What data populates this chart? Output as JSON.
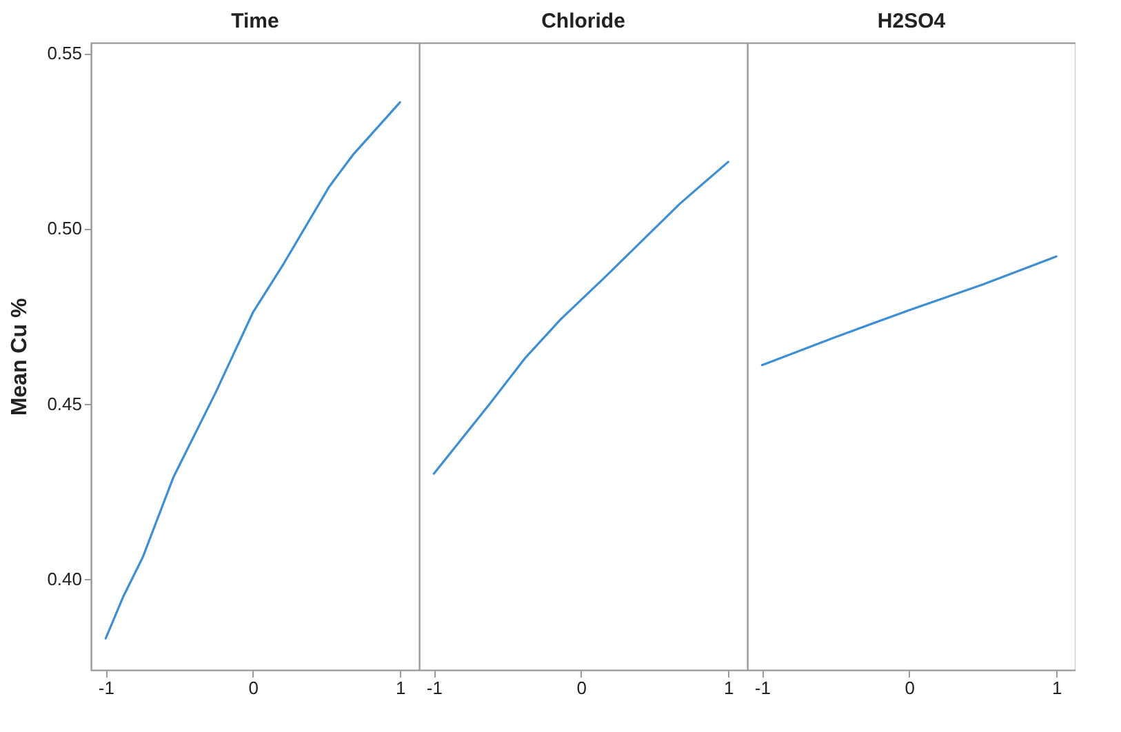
{
  "chart_data": [
    {
      "type": "line",
      "title": "Time",
      "ylabel": "Mean Cu %",
      "color": "#3d8fd1",
      "x": [
        -1,
        -0.88,
        -0.75,
        -0.54,
        -0.255,
        0,
        0.21,
        0.52,
        0.68,
        1
      ],
      "values": [
        0.383,
        0.395,
        0.406,
        0.429,
        0.453,
        0.476,
        0.49,
        0.512,
        0.521,
        0.536
      ],
      "xlim": [
        -1.1,
        1.13
      ],
      "xticks": [
        -1,
        0,
        1
      ],
      "ylim": [
        0.374,
        0.553
      ],
      "yticks": [
        {
          "value": 0.4,
          "label": "0.40"
        },
        0.45,
        {
          "value": 0.5,
          "label": "0.50"
        },
        0.55
      ]
    },
    {
      "type": "line",
      "title": "Chloride",
      "color": "#3d8fd1",
      "x": [
        -1,
        -0.62,
        -0.38,
        -0.14,
        0.16,
        0.67,
        1
      ],
      "values": [
        0.43,
        0.45,
        0.463,
        0.474,
        0.486,
        0.507,
        0.519
      ],
      "xlim": [
        -1.1,
        1.13
      ],
      "xticks": [
        -1,
        0,
        1
      ],
      "ylim": [
        0.374,
        0.553
      ],
      "yticks": [
        0.4,
        0.45,
        0.5,
        0.55
      ],
      "tick_labels": "x"
    },
    {
      "type": "line",
      "title": "H2SO4",
      "color": "#3d8fd1",
      "x": [
        -1,
        -0.5,
        0,
        0.5,
        1
      ],
      "values": [
        0.461,
        0.469,
        0.4767,
        0.484,
        0.492
      ],
      "xlim": [
        -1.1,
        1.13
      ],
      "xticks": [
        -1,
        0,
        1
      ],
      "ylim": [
        0.374,
        0.553
      ],
      "yticks": [
        0.4,
        0.45,
        0.5,
        0.55
      ],
      "tick_labels": "x"
    }
  ]
}
